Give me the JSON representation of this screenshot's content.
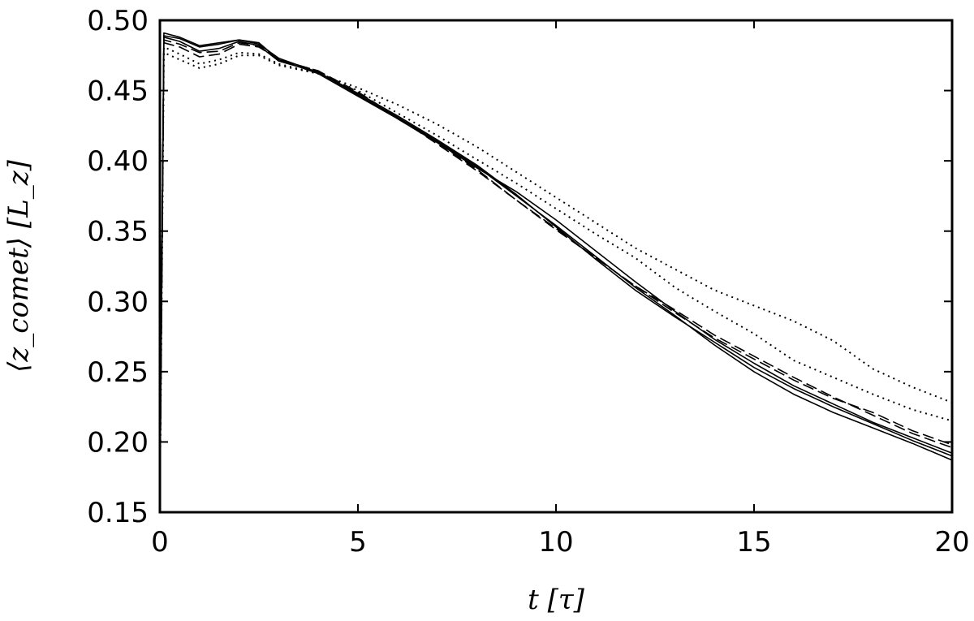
{
  "chart_data": {
    "type": "line",
    "xlabel": "t [τ]",
    "ylabel": "⟨z_comet⟩ [L_z]",
    "xlim": [
      0,
      20
    ],
    "ylim": [
      0.15,
      0.5
    ],
    "x_ticks": [
      "0",
      "5",
      "10",
      "15",
      "20"
    ],
    "y_ticks": [
      "0.15",
      "0.20",
      "0.25",
      "0.30",
      "0.35",
      "0.40",
      "0.45",
      "0.50"
    ],
    "grid": false,
    "legend": "none",
    "series": [
      {
        "style": "solid",
        "x": [
          0,
          0.1,
          0.5,
          1.0,
          1.5,
          2.0,
          2.5,
          3.0,
          4.0,
          5.0,
          6.0,
          7.0,
          8.0,
          9.0,
          10.0,
          11.0,
          12.0,
          13.0,
          14.0,
          15.0,
          16.0,
          17.0,
          18.0,
          19.0,
          20.0
        ],
        "y": [
          0.16,
          0.489,
          0.487,
          0.481,
          0.483,
          0.486,
          0.483,
          0.473,
          0.463,
          0.447,
          0.431,
          0.414,
          0.396,
          0.375,
          0.354,
          0.332,
          0.31,
          0.29,
          0.269,
          0.25,
          0.234,
          0.221,
          0.21,
          0.199,
          0.187
        ]
      },
      {
        "style": "solid",
        "x": [
          0,
          0.1,
          0.5,
          1.0,
          1.5,
          2.0,
          2.5,
          3.0,
          4.0,
          5.0,
          6.0,
          7.0,
          8.0,
          9.0,
          10.0,
          11.0,
          12.0,
          13.0,
          14.0,
          15.0,
          16.0,
          17.0,
          18.0,
          19.0,
          20.0
        ],
        "y": [
          0.16,
          0.491,
          0.488,
          0.482,
          0.484,
          0.486,
          0.484,
          0.472,
          0.462,
          0.446,
          0.43,
          0.413,
          0.395,
          0.378,
          0.358,
          0.336,
          0.314,
          0.293,
          0.273,
          0.256,
          0.24,
          0.227,
          0.214,
          0.203,
          0.192
        ]
      },
      {
        "style": "solid",
        "x": [
          0,
          0.1,
          0.5,
          1.0,
          1.5,
          2.0,
          2.5,
          3.0,
          4.0,
          5.0,
          6.0,
          7.0,
          8.0,
          9.0,
          10.0,
          11.0,
          12.0,
          13.0,
          14.0,
          15.0,
          16.0,
          17.0,
          18.0,
          19.0,
          20.0
        ],
        "y": [
          0.16,
          0.488,
          0.485,
          0.478,
          0.48,
          0.485,
          0.482,
          0.471,
          0.463,
          0.448,
          0.432,
          0.415,
          0.397,
          0.376,
          0.353,
          0.33,
          0.308,
          0.289,
          0.271,
          0.253,
          0.238,
          0.225,
          0.213,
          0.201,
          0.19
        ]
      },
      {
        "style": "dashed",
        "x": [
          0,
          0.1,
          0.5,
          1.0,
          1.5,
          2.0,
          2.5,
          3.0,
          4.0,
          5.0,
          6.0,
          7.0,
          8.0,
          9.0,
          10.0,
          11.0,
          12.0,
          13.0,
          14.0,
          15.0,
          16.0,
          17.0,
          18.0,
          19.0,
          20.0
        ],
        "y": [
          0.16,
          0.486,
          0.483,
          0.477,
          0.478,
          0.484,
          0.482,
          0.472,
          0.464,
          0.447,
          0.43,
          0.413,
          0.394,
          0.372,
          0.352,
          0.331,
          0.311,
          0.292,
          0.274,
          0.259,
          0.244,
          0.231,
          0.221,
          0.208,
          0.198
        ]
      },
      {
        "style": "dashed",
        "x": [
          0,
          0.1,
          0.5,
          1.0,
          1.5,
          2.0,
          2.5,
          3.0,
          4.0,
          5.0,
          6.0,
          7.0,
          8.0,
          9.0,
          10.0,
          11.0,
          12.0,
          13.0,
          14.0,
          15.0,
          16.0,
          17.0,
          18.0,
          19.0,
          20.0
        ],
        "y": [
          0.16,
          0.484,
          0.481,
          0.474,
          0.476,
          0.483,
          0.481,
          0.472,
          0.464,
          0.449,
          0.431,
          0.412,
          0.393,
          0.372,
          0.351,
          0.331,
          0.311,
          0.294,
          0.276,
          0.261,
          0.246,
          0.232,
          0.219,
          0.206,
          0.196
        ]
      },
      {
        "style": "dotted",
        "x": [
          0,
          0.1,
          0.5,
          1.0,
          1.5,
          2.0,
          2.5,
          3.0,
          4.0,
          5.0,
          6.0,
          7.0,
          8.0,
          9.0,
          10.0,
          11.0,
          12.0,
          13.0,
          14.0,
          15.0,
          16.0,
          17.0,
          18.0,
          19.0,
          20.0
        ],
        "y": [
          0.16,
          0.481,
          0.476,
          0.469,
          0.472,
          0.477,
          0.476,
          0.469,
          0.462,
          0.45,
          0.434,
          0.418,
          0.401,
          0.384,
          0.366,
          0.348,
          0.331,
          0.31,
          0.293,
          0.277,
          0.258,
          0.246,
          0.234,
          0.223,
          0.215
        ]
      },
      {
        "style": "dotted",
        "x": [
          0,
          0.1,
          0.5,
          1.0,
          1.5,
          2.0,
          2.5,
          3.0,
          4.0,
          5.0,
          6.0,
          7.0,
          8.0,
          9.0,
          10.0,
          11.0,
          12.0,
          13.0,
          14.0,
          15.0,
          16.0,
          17.0,
          18.0,
          19.0,
          20.0
        ],
        "y": [
          0.16,
          0.477,
          0.472,
          0.466,
          0.469,
          0.475,
          0.475,
          0.468,
          0.462,
          0.452,
          0.44,
          0.426,
          0.41,
          0.392,
          0.374,
          0.356,
          0.338,
          0.323,
          0.308,
          0.297,
          0.286,
          0.272,
          0.252,
          0.239,
          0.228
        ]
      }
    ]
  }
}
